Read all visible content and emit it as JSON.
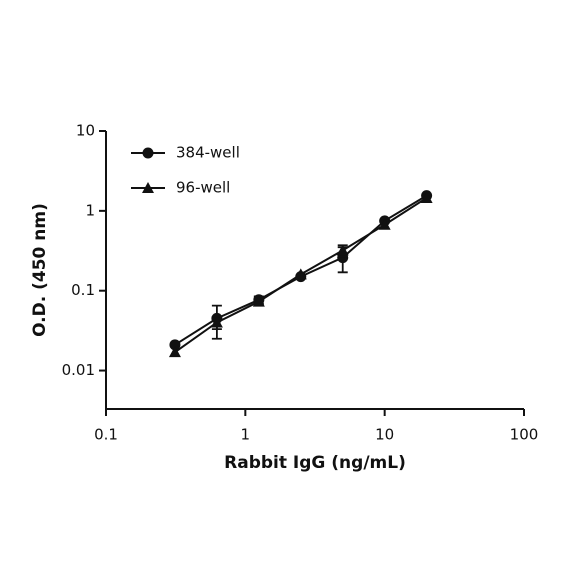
{
  "chart_data": {
    "type": "scatter",
    "xlabel": "Rabbit IgG (ng/mL)",
    "ylabel": "O.D. (450 nm)",
    "xscale": "log",
    "yscale": "log",
    "xlim": [
      0.1,
      100
    ],
    "ylim": [
      0.0033,
      10
    ],
    "xticks": [
      0.1,
      1,
      10,
      100
    ],
    "yticks": [
      0.01,
      0.1,
      1,
      10
    ],
    "x": [
      0.3125,
      0.625,
      1.25,
      2.5,
      5,
      10,
      20
    ],
    "legend": "upper left",
    "series": [
      {
        "name": "384-well",
        "color": "#111111",
        "marker": "circle",
        "values": [
          0.021,
          0.045,
          0.077,
          0.15,
          0.26,
          0.75,
          1.55
        ],
        "errors": [
          null,
          0.02,
          0.008,
          null,
          0.09,
          null,
          null
        ]
      },
      {
        "name": "96-well",
        "color": "#111111",
        "marker": "triangle",
        "values": [
          0.017,
          0.04,
          0.073,
          0.16,
          0.32,
          0.67,
          1.45
        ],
        "errors": [
          null,
          0.007,
          0.007,
          null,
          0.05,
          null,
          null
        ]
      }
    ]
  }
}
